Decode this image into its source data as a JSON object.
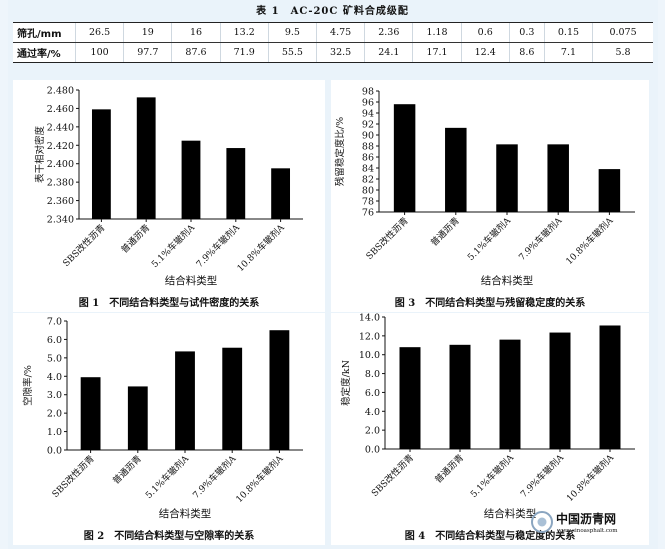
{
  "table": {
    "title": "表 1　AC-20C 矿料合成级配",
    "rows": [
      {
        "label": "筛孔/mm",
        "values": [
          "26.5",
          "19",
          "16",
          "13.2",
          "9.5",
          "4.75",
          "2.36",
          "1.18",
          "0.6",
          "0.3",
          "0.15",
          "0.075"
        ]
      },
      {
        "label": "通过率/%",
        "values": [
          "100",
          "97.7",
          "87.6",
          "71.9",
          "55.5",
          "32.5",
          "24.1",
          "17.1",
          "12.4",
          "8.6",
          "7.1",
          "5.8"
        ]
      }
    ]
  },
  "chart_data": [
    {
      "type": "bar",
      "title": "",
      "caption": "图 1　不同结合料类型与试件密度的关系",
      "xlabel": "结合料类型",
      "ylabel": "表干相对密度",
      "categories": [
        "SBS改性沥青",
        "普通沥青",
        "5.1%车辙剂A",
        "7.9%车辙剂A",
        "10.8%车辙剂A"
      ],
      "values": [
        2.459,
        2.472,
        2.425,
        2.417,
        2.395
      ],
      "ylim": [
        2.34,
        2.48
      ],
      "yticks": [
        "2.340",
        "2.360",
        "2.380",
        "2.400",
        "2.420",
        "2.440",
        "2.460",
        "2.480"
      ],
      "grid": false
    },
    {
      "type": "bar",
      "title": "",
      "caption": "图 2　不同结合料类型与空隙率的关系",
      "xlabel": "结合料类型",
      "ylabel": "空隙率/%",
      "categories": [
        "SBS改性沥青",
        "普通沥青",
        "5.1%车辙剂A",
        "7.9%车辙剂A",
        "10.8%车辙剂A"
      ],
      "values": [
        3.95,
        3.45,
        5.35,
        5.55,
        6.5
      ],
      "ylim": [
        0,
        7
      ],
      "yticks": [
        "0.0",
        "1.0",
        "2.0",
        "3.0",
        "4.0",
        "5.0",
        "6.0",
        "7.0"
      ],
      "grid": false
    },
    {
      "type": "bar",
      "title": "",
      "caption": "图 3　不同结合料类型与残留稳定度的关系",
      "xlabel": "结合料类型",
      "ylabel": "残留稳定度比/%",
      "categories": [
        "SBS改性沥青",
        "普通沥青",
        "5.1%车辙剂A",
        "7.9%车辙剂A",
        "10.8%车辙剂A"
      ],
      "values": [
        95.6,
        91.3,
        88.3,
        88.3,
        83.8
      ],
      "ylim": [
        76,
        98
      ],
      "yticks": [
        "76",
        "78",
        "80",
        "82",
        "84",
        "86",
        "88",
        "90",
        "92",
        "94",
        "96",
        "98"
      ],
      "grid": false
    },
    {
      "type": "bar",
      "title": "",
      "caption": "图 4　不同结合料类型与稳定度的关系",
      "xlabel": "结合料类型",
      "ylabel": "稳定度/kN",
      "categories": [
        "SBS改性沥青",
        "普通沥青",
        "5.1%车辙剂A",
        "7.9%车辙剂A",
        "10.8%车辙剂A"
      ],
      "values": [
        10.8,
        11.05,
        11.6,
        12.35,
        13.1
      ],
      "ylim": [
        0,
        14
      ],
      "yticks": [
        "0.0",
        "2.0",
        "4.0",
        "6.0",
        "8.0",
        "10.0",
        "12.0",
        "14.0"
      ],
      "grid": false
    }
  ],
  "watermark": {
    "text": "中国沥青网",
    "url_text": "www.sinoasphalt.com"
  }
}
